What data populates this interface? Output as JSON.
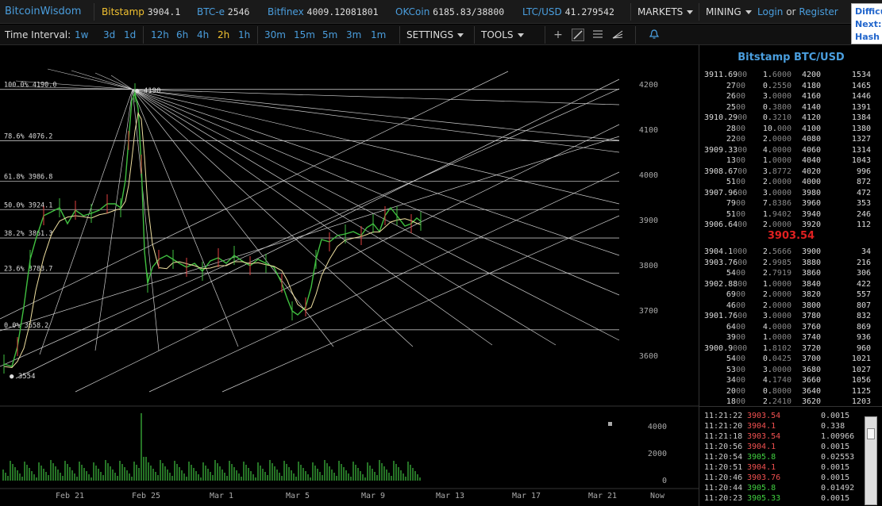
{
  "brand": "BitcoinWisdom",
  "tickers": [
    {
      "name": "Bitstamp",
      "price": "3904.1",
      "style": "yellow"
    },
    {
      "name": "BTC-e",
      "price": "2546",
      "style": "blue"
    },
    {
      "name": "Bitfinex",
      "price": "4009.12081801",
      "style": "blue"
    },
    {
      "name": "OKCoin",
      "price": "6185.83/38800",
      "style": "blue"
    },
    {
      "name": "LTC/USD",
      "price": "41.279542",
      "style": "blue"
    }
  ],
  "menus": {
    "markets": "MARKETS",
    "mining": "MINING",
    "login": "Login",
    "or": "or",
    "register": "Register"
  },
  "diff": {
    "l1": "Difficu",
    "l2": "Next:",
    "l3": "Hash R"
  },
  "toolbar": {
    "label": "Time Interval:",
    "intervals": [
      "1w",
      "3d",
      "1d",
      "12h",
      "6h",
      "4h",
      "2h",
      "1h",
      "30m",
      "15m",
      "5m",
      "3m",
      "1m"
    ],
    "active": "2h",
    "settings": "SETTINGS",
    "tools": "TOOLS",
    "icons": [
      "crosshair-icon",
      "trendline-icon",
      "horizontal-lines-icon",
      "fan-icon",
      "bell-icon"
    ]
  },
  "chart_data": {
    "type": "candlestick",
    "price_axis": [
      "4200",
      "4100",
      "4000",
      "3900",
      "3800",
      "3700",
      "3600"
    ],
    "fib_levels": [
      {
        "pct": "100.0%",
        "price": "4190.0",
        "v": 4190
      },
      {
        "pct": "78.6%",
        "price": "4076.2",
        "v": 4076.2
      },
      {
        "pct": "61.8%",
        "price": "3986.8",
        "v": 3986.8
      },
      {
        "pct": "50.0%",
        "price": "3924.1",
        "v": 3924.1
      },
      {
        "pct": "38.2%",
        "price": "3861.3",
        "v": 3861.3
      },
      {
        "pct": "23.6%",
        "price": "3783.7",
        "v": 3783.7
      },
      {
        "pct": "0.0%",
        "price": "3658.2",
        "v": 3658.2
      }
    ],
    "annotations": [
      "4190",
      "3554"
    ],
    "volume_axis": [
      "4000",
      "2000",
      "0"
    ],
    "x_labels": [
      "Feb 21",
      "Feb 25",
      "Mar 1",
      "Mar 5",
      "Mar 9",
      "Mar 13",
      "Mar 17",
      "Mar 21",
      "Now"
    ]
  },
  "orderbook": {
    "title": "Bitstamp BTC/USD",
    "asks": [
      [
        "3911.69",
        "00",
        "1.6000",
        "4200",
        "1534"
      ],
      [
        "27",
        "00",
        "0.2550",
        "4180",
        "1465"
      ],
      [
        "26",
        "00",
        "3.0000",
        "4160",
        "1446"
      ],
      [
        "25",
        "00",
        "0.3800",
        "4140",
        "1391"
      ],
      [
        "3910.29",
        "00",
        "0.3210",
        "4120",
        "1384"
      ],
      [
        "28",
        "00",
        "10.000",
        "4100",
        "1380"
      ],
      [
        "22",
        "00",
        "2.0000",
        "4080",
        "1327"
      ],
      [
        "3909.33",
        "00",
        "4.0000",
        "4060",
        "1314"
      ],
      [
        "13",
        "00",
        "1.0000",
        "4040",
        "1043"
      ],
      [
        "3908.67",
        "00",
        "3.8772",
        "4020",
        "996"
      ],
      [
        "51",
        "00",
        "2.0000",
        "4000",
        "872"
      ],
      [
        "3907.96",
        "00",
        "3.0000",
        "3980",
        "472"
      ],
      [
        "79",
        "00",
        "7.8386",
        "3960",
        "353"
      ],
      [
        "51",
        "00",
        "1.9402",
        "3940",
        "246"
      ],
      [
        "3906.64",
        "00",
        "2.0000",
        "3920",
        "112"
      ]
    ],
    "last": "3903.54",
    "bids": [
      [
        "3904.1",
        "000",
        "2.5666",
        "3900",
        "34"
      ],
      [
        "3903.76",
        "00",
        "2.9985",
        "3880",
        "216"
      ],
      [
        "54",
        "00",
        "2.7919",
        "3860",
        "306"
      ],
      [
        "3902.88",
        "00",
        "1.0000",
        "3840",
        "422"
      ],
      [
        "69",
        "00",
        "2.0000",
        "3820",
        "557"
      ],
      [
        "46",
        "00",
        "2.0000",
        "3800",
        "807"
      ],
      [
        "3901.76",
        "00",
        "3.0000",
        "3780",
        "832"
      ],
      [
        "64",
        "00",
        "4.0000",
        "3760",
        "869"
      ],
      [
        "39",
        "00",
        "1.0000",
        "3740",
        "936"
      ],
      [
        "3900.9",
        "000",
        "1.8102",
        "3720",
        "960"
      ],
      [
        "54",
        "00",
        "0.0425",
        "3700",
        "1021"
      ],
      [
        "53",
        "00",
        "3.0000",
        "3680",
        "1027"
      ],
      [
        "34",
        "00",
        "4.1740",
        "3660",
        "1056"
      ],
      [
        "20",
        "00",
        "0.8000",
        "3640",
        "1125"
      ],
      [
        "18",
        "00",
        "2.2410",
        "3620",
        "1203"
      ]
    ]
  },
  "trades": [
    [
      "11:21:22",
      "3903.54",
      "red",
      "0.0015"
    ],
    [
      "11:21:20",
      "3904.1",
      "red",
      "0.338"
    ],
    [
      "11:21:18",
      "3903.54",
      "red",
      "1.00966"
    ],
    [
      "11:20:56",
      "3904.1",
      "red",
      "0.0015"
    ],
    [
      "11:20:54",
      "3905.8",
      "grn",
      "0.02553"
    ],
    [
      "11:20:51",
      "3904.1",
      "red",
      "0.0015"
    ],
    [
      "11:20:46",
      "3903.76",
      "red",
      "0.0015"
    ],
    [
      "11:20:44",
      "3905.8",
      "grn",
      "0.01492"
    ],
    [
      "11:20:23",
      "3905.33",
      "grn",
      "0.0015"
    ]
  ]
}
